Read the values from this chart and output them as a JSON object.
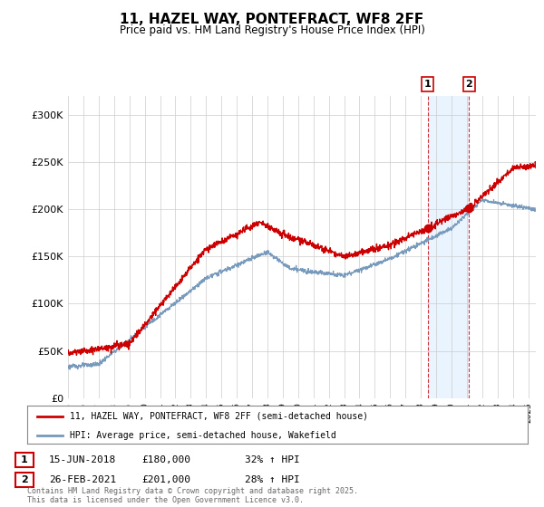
{
  "title": "11, HAZEL WAY, PONTEFRACT, WF8 2FF",
  "subtitle": "Price paid vs. HM Land Registry's House Price Index (HPI)",
  "ylabel_ticks": [
    "£0",
    "£50K",
    "£100K",
    "£150K",
    "£200K",
    "£250K",
    "£300K"
  ],
  "ytick_values": [
    0,
    50000,
    100000,
    150000,
    200000,
    250000,
    300000
  ],
  "ylim": [
    0,
    320000
  ],
  "xlim_start": 1995.0,
  "xlim_end": 2025.5,
  "hpi_color": "#7799bb",
  "price_color": "#cc0000",
  "sale1_date": 2018.45,
  "sale1_price": 180000,
  "sale1_label": "1",
  "sale2_date": 2021.15,
  "sale2_price": 201000,
  "sale2_label": "2",
  "legend_line1": "11, HAZEL WAY, PONTEFRACT, WF8 2FF (semi-detached house)",
  "legend_line2": "HPI: Average price, semi-detached house, Wakefield",
  "table_row1": [
    "1",
    "15-JUN-2018",
    "£180,000",
    "32% ↑ HPI"
  ],
  "table_row2": [
    "2",
    "26-FEB-2021",
    "£201,000",
    "28% ↑ HPI"
  ],
  "footnote": "Contains HM Land Registry data © Crown copyright and database right 2025.\nThis data is licensed under the Open Government Licence v3.0.",
  "background_color": "#ffffff",
  "grid_color": "#cccccc",
  "shade_color": "#ddeeff"
}
